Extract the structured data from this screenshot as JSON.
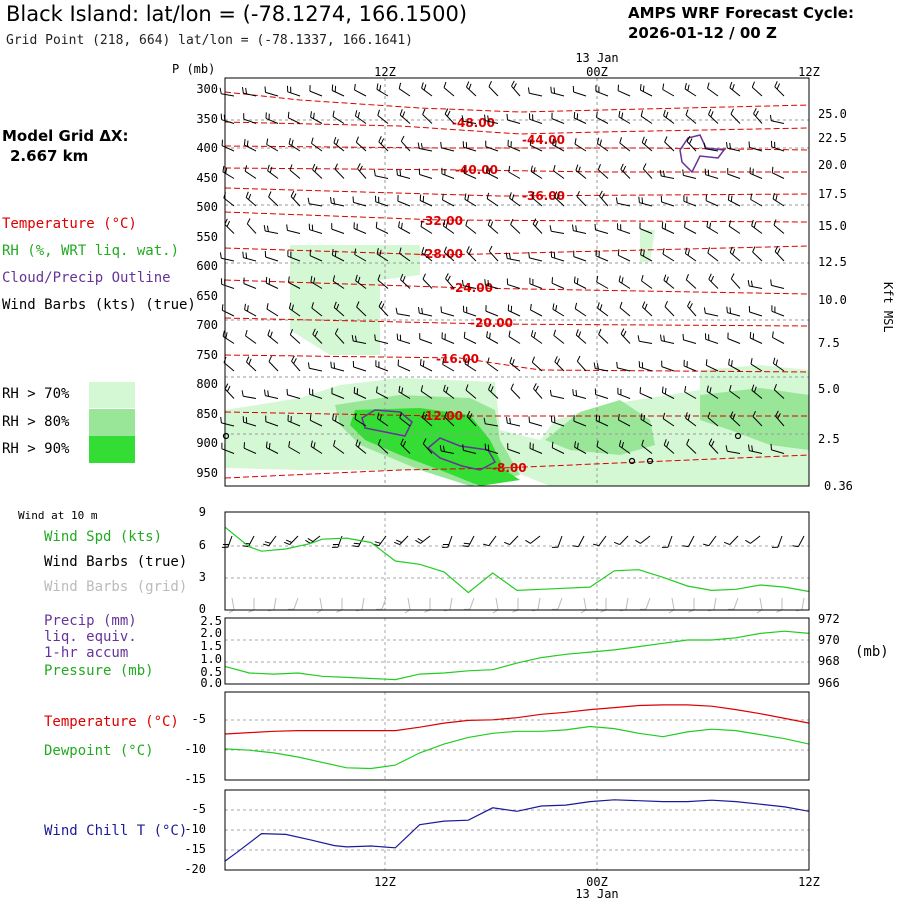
{
  "header": {
    "title": "Black Island:  lat/lon = (-78.1274, 166.1500)",
    "subtitle": "Grid Point (218, 664) lat/lon = (-78.1337, 166.1641)",
    "cycle_line1": "AMPS WRF Forecast Cycle:",
    "cycle_line2": "2026-01-12 / 00  Z",
    "model_grid_line1": "Model Grid ΔX:",
    "model_grid_line2": "2.667 km"
  },
  "legend": {
    "temperature": "Temperature (°C)",
    "rh": "RH (%, WRT liq. wat.)",
    "cloud": "Cloud/Precip Outline",
    "wind": "Wind Barbs (kts) (true)",
    "rh70": "RH > 70%",
    "rh80": "RH > 80%",
    "rh90": "RH > 90%",
    "colors": {
      "rh70": "#d4f7d4",
      "rh80": "#99e699",
      "rh90": "#33dd33",
      "temp": "#dd0000",
      "cloud": "#663399"
    }
  },
  "time_axis": {
    "top_ticks": [
      "12Z",
      "00Z",
      "12Z"
    ],
    "date": "13 Jan",
    "bottom_ticks": [
      "12Z",
      "00Z",
      "12Z"
    ]
  },
  "main_panel": {
    "pressure_label": "P (mb)",
    "pressure_ticks": [
      "300",
      "350",
      "400",
      "450",
      "500",
      "550",
      "600",
      "650",
      "700",
      "750",
      "800",
      "850",
      "900",
      "950"
    ],
    "height_ticks": [
      "25.0",
      "22.5",
      "20.0",
      "17.5",
      "15.0",
      "12.5",
      "10.0",
      "7.5",
      "5.0",
      "2.5",
      "0.36"
    ],
    "height_label": "Kft MSL",
    "isotherm_labels": [
      "-48.00",
      "-44.00",
      "-40.00",
      "-36.00",
      "-32.00",
      "-28.00",
      "-24.00",
      "-20.00",
      "-16.00",
      "-12.00",
      "-8.00"
    ]
  },
  "panels": {
    "wind10m": {
      "title": "Wind at 10 m",
      "spd_label": "Wind Spd (kts)",
      "barbs_true": "Wind Barbs (true)",
      "barbs_grid": "Wind Barbs (grid)",
      "ticks": [
        "9",
        "6",
        "3",
        "0"
      ]
    },
    "precip": {
      "label1": "Precip (mm)",
      "label2": "liq. equiv.",
      "label3": "1-hr accum",
      "label4": "Pressure (mb)",
      "left_ticks": [
        "2.5",
        "2.0",
        "1.5",
        "1.0",
        "0.5",
        "0.0"
      ],
      "right_ticks": [
        "972",
        "970",
        "968",
        "966"
      ],
      "units": "(mb)"
    },
    "temp": {
      "label1": "Temperature (°C)",
      "label2": "Dewpoint (°C)",
      "ticks": [
        "-5",
        "-10",
        "-15"
      ]
    },
    "chill": {
      "label": "Wind Chill T (°C)",
      "ticks": [
        "-5",
        "-10",
        "-15",
        "-20"
      ]
    }
  },
  "chart_data": [
    {
      "type": "line",
      "title": "Wind Spd (kts) at 10 m",
      "x_hours": [
        0,
        2,
        3,
        5,
        7,
        8,
        10,
        12,
        14,
        16,
        18,
        20,
        22,
        24,
        26,
        28,
        30,
        32,
        34,
        36,
        38,
        40,
        42,
        44,
        46,
        48
      ],
      "values": [
        7.6,
        5.8,
        5.4,
        5.6,
        6.1,
        6.5,
        6.6,
        6.2,
        4.5,
        4.2,
        3.5,
        1.6,
        3.4,
        1.8,
        1.9,
        2.0,
        2.1,
        3.6,
        3.7,
        3.0,
        2.2,
        1.8,
        1.9,
        2.3,
        2.1,
        1.7
      ],
      "ylim": [
        0,
        9
      ]
    },
    {
      "type": "line",
      "title": "Pressure (mb)",
      "x_hours": [
        0,
        2,
        4,
        6,
        8,
        10,
        12,
        14,
        16,
        18,
        20,
        22,
        24,
        26,
        28,
        30,
        32,
        34,
        36,
        38,
        40,
        42,
        44,
        46,
        48
      ],
      "values": [
        967.6,
        967.0,
        966.9,
        967.0,
        966.7,
        966.6,
        966.5,
        966.4,
        966.9,
        967.0,
        967.2,
        967.3,
        967.9,
        968.4,
        968.7,
        968.9,
        969.1,
        969.4,
        969.7,
        970.0,
        970.0,
        970.2,
        970.6,
        970.8,
        970.6
      ],
      "ylim": [
        966,
        972
      ]
    },
    {
      "type": "line",
      "title": "Temperature and Dewpoint (°C)",
      "x_hours": [
        0,
        2,
        4,
        6,
        8,
        10,
        12,
        14,
        16,
        18,
        20,
        22,
        24,
        26,
        28,
        30,
        32,
        34,
        36,
        38,
        40,
        42,
        44,
        46,
        48
      ],
      "series": [
        {
          "name": "Temperature",
          "values": [
            -8.2,
            -8.0,
            -7.8,
            -7.7,
            -7.7,
            -7.7,
            -7.7,
            -7.7,
            -7.2,
            -6.6,
            -6.2,
            -6.1,
            -5.8,
            -5.3,
            -5.0,
            -4.6,
            -4.3,
            -4.0,
            -3.9,
            -3.9,
            -4.1,
            -4.6,
            -5.2,
            -5.9,
            -6.6
          ]
        },
        {
          "name": "Dewpoint",
          "values": [
            -10.4,
            -10.6,
            -11.0,
            -11.6,
            -12.4,
            -13.2,
            -13.3,
            -12.8,
            -11.0,
            -9.7,
            -8.7,
            -8.1,
            -7.8,
            -7.8,
            -7.6,
            -7.1,
            -7.4,
            -8.1,
            -8.6,
            -7.9,
            -7.5,
            -7.7,
            -8.3,
            -8.9,
            -9.7
          ]
        }
      ],
      "ylim": [
        -15,
        -2
      ]
    },
    {
      "type": "line",
      "title": "Wind Chill T (°C)",
      "x_hours": [
        0,
        1,
        3,
        5,
        7,
        9,
        10,
        12,
        14,
        16,
        18,
        20,
        22,
        24,
        26,
        28,
        30,
        32,
        34,
        36,
        38,
        40,
        42,
        44,
        46,
        48
      ],
      "values": [
        -18.0,
        -16.0,
        -11.8,
        -12.0,
        -13.2,
        -14.5,
        -14.8,
        -14.6,
        -15.0,
        -9.8,
        -9.0,
        -8.8,
        -6.0,
        -6.8,
        -5.6,
        -5.4,
        -4.6,
        -4.2,
        -4.4,
        -4.6,
        -4.6,
        -4.3,
        -4.6,
        -5.2,
        -5.8,
        -6.8
      ],
      "ylim": [
        -20,
        -2
      ]
    }
  ]
}
